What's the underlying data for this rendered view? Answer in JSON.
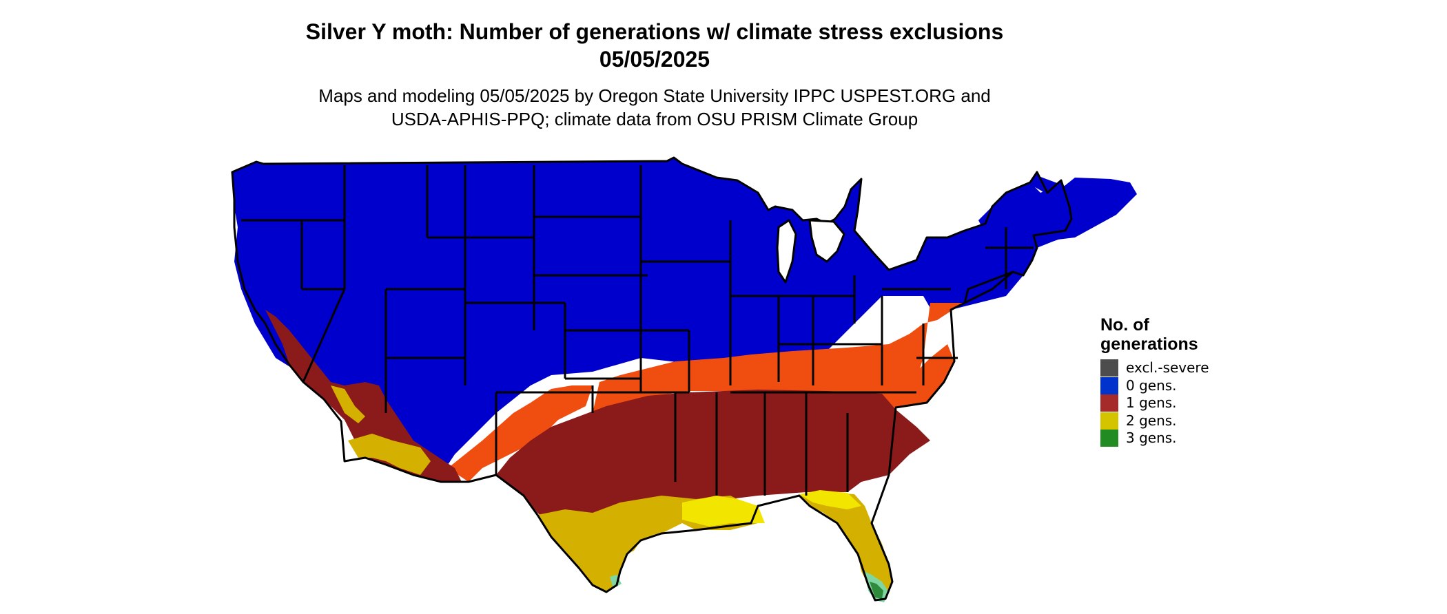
{
  "title": {
    "line1": "Silver Y moth: Number of generations w/ climate stress exclusions",
    "line2": "05/05/2025"
  },
  "subtitle": {
    "line1": "Maps and modeling 05/05/2025 by Oregon State University IPPC USPEST.ORG and",
    "line2": "USDA-APHIS-PPQ; climate data from OSU PRISM Climate Group"
  },
  "legend": {
    "title_line1": "No. of",
    "title_line2": "generations",
    "items": [
      {
        "label": "excl.-severe",
        "color": "#4d4d4d"
      },
      {
        "label": "0 gens.",
        "color": "#0033cc"
      },
      {
        "label": "1 gens.",
        "color": "#a52a2a"
      },
      {
        "label": "2 gens.",
        "color": "#d4c400"
      },
      {
        "label": "3 gens.",
        "color": "#228b22"
      }
    ]
  },
  "map_colors": {
    "zero_gens": "#0000cc",
    "one_gen_dark": "#8b1a1a",
    "one_gen_orange": "#f04e10",
    "two_gens": "#d4b000",
    "two_gens_bright": "#f2e600",
    "three_gens": "#2e8b3c",
    "three_gens_light": "#7fd6a0",
    "borders": "#000000"
  }
}
